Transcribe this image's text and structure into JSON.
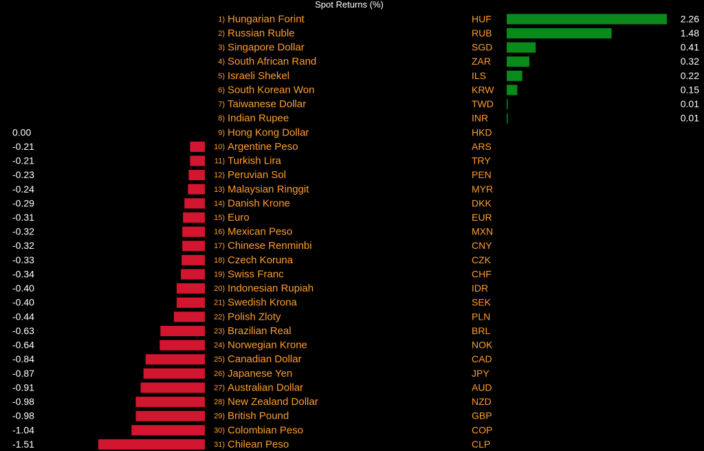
{
  "chart_data": {
    "type": "bar",
    "title": "Spot Returns (%)",
    "colors": {
      "positive": "#0a8a1a",
      "negative": "#d3162f",
      "text": "#ff9d2e",
      "value_text": "#ffffff",
      "background": "#000000"
    },
    "rows": [
      {
        "rank": "1)",
        "name": "Hungarian Forint",
        "code": "HUF",
        "value": 2.26,
        "label": "2.26"
      },
      {
        "rank": "2)",
        "name": "Russian Ruble",
        "code": "RUB",
        "value": 1.48,
        "label": "1.48"
      },
      {
        "rank": "3)",
        "name": "Singapore Dollar",
        "code": "SGD",
        "value": 0.41,
        "label": "0.41"
      },
      {
        "rank": "4)",
        "name": "South African Rand",
        "code": "ZAR",
        "value": 0.32,
        "label": "0.32"
      },
      {
        "rank": "5)",
        "name": "Israeli Shekel",
        "code": "ILS",
        "value": 0.22,
        "label": "0.22"
      },
      {
        "rank": "6)",
        "name": "South Korean Won",
        "code": "KRW",
        "value": 0.15,
        "label": "0.15"
      },
      {
        "rank": "7)",
        "name": "Taiwanese Dollar",
        "code": "TWD",
        "value": 0.01,
        "label": "0.01"
      },
      {
        "rank": "8)",
        "name": "Indian Rupee",
        "code": "INR",
        "value": 0.01,
        "label": "0.01"
      },
      {
        "rank": "9)",
        "name": "Hong Kong Dollar",
        "code": "HKD",
        "value": 0.0,
        "label": "0.00"
      },
      {
        "rank": "10)",
        "name": "Argentine Peso",
        "code": "ARS",
        "value": -0.21,
        "label": "-0.21"
      },
      {
        "rank": "11)",
        "name": "Turkish Lira",
        "code": "TRY",
        "value": -0.21,
        "label": "-0.21"
      },
      {
        "rank": "12)",
        "name": "Peruvian Sol",
        "code": "PEN",
        "value": -0.23,
        "label": "-0.23"
      },
      {
        "rank": "13)",
        "name": "Malaysian Ringgit",
        "code": "MYR",
        "value": -0.24,
        "label": "-0.24"
      },
      {
        "rank": "14)",
        "name": "Danish Krone",
        "code": "DKK",
        "value": -0.29,
        "label": "-0.29"
      },
      {
        "rank": "15)",
        "name": "Euro",
        "code": "EUR",
        "value": -0.31,
        "label": "-0.31"
      },
      {
        "rank": "16)",
        "name": "Mexican Peso",
        "code": "MXN",
        "value": -0.32,
        "label": "-0.32"
      },
      {
        "rank": "17)",
        "name": "Chinese Renminbi",
        "code": "CNY",
        "value": -0.32,
        "label": "-0.32"
      },
      {
        "rank": "18)",
        "name": "Czech Koruna",
        "code": "CZK",
        "value": -0.33,
        "label": "-0.33"
      },
      {
        "rank": "19)",
        "name": "Swiss Franc",
        "code": "CHF",
        "value": -0.34,
        "label": "-0.34"
      },
      {
        "rank": "20)",
        "name": "Indonesian Rupiah",
        "code": "IDR",
        "value": -0.4,
        "label": "-0.40"
      },
      {
        "rank": "21)",
        "name": "Swedish Krona",
        "code": "SEK",
        "value": -0.4,
        "label": "-0.40"
      },
      {
        "rank": "22)",
        "name": "Polish Zloty",
        "code": "PLN",
        "value": -0.44,
        "label": "-0.44"
      },
      {
        "rank": "23)",
        "name": "Brazilian Real",
        "code": "BRL",
        "value": -0.63,
        "label": "-0.63"
      },
      {
        "rank": "24)",
        "name": "Norwegian Krone",
        "code": "NOK",
        "value": -0.64,
        "label": "-0.64"
      },
      {
        "rank": "25)",
        "name": "Canadian Dollar",
        "code": "CAD",
        "value": -0.84,
        "label": "-0.84"
      },
      {
        "rank": "26)",
        "name": "Japanese Yen",
        "code": "JPY",
        "value": -0.87,
        "label": "-0.87"
      },
      {
        "rank": "27)",
        "name": "Australian Dollar",
        "code": "AUD",
        "value": -0.91,
        "label": "-0.91"
      },
      {
        "rank": "28)",
        "name": "New Zealand Dollar",
        "code": "NZD",
        "value": -0.98,
        "label": "-0.98"
      },
      {
        "rank": "29)",
        "name": "British Pound",
        "code": "GBP",
        "value": -0.98,
        "label": "-0.98"
      },
      {
        "rank": "30)",
        "name": "Colombian Peso",
        "code": "COP",
        "value": -1.04,
        "label": "-1.04"
      },
      {
        "rank": "31)",
        "name": "Chilean Peso",
        "code": "CLP",
        "value": -1.51,
        "label": "-1.51"
      }
    ]
  }
}
